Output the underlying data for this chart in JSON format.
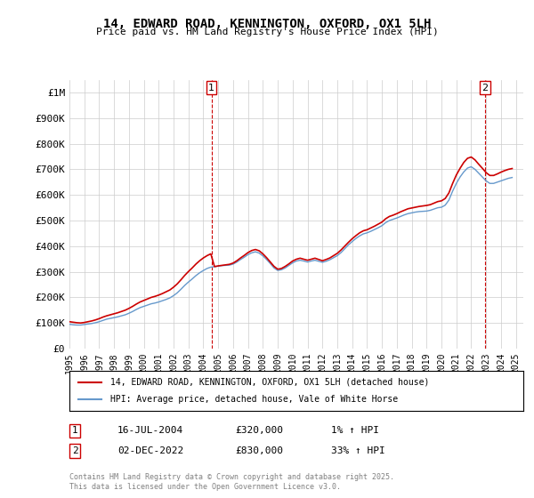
{
  "title": "14, EDWARD ROAD, KENNINGTON, OXFORD, OX1 5LH",
  "subtitle": "Price paid vs. HM Land Registry's House Price Index (HPI)",
  "ylabel_ticks": [
    "£0",
    "£100K",
    "£200K",
    "£300K",
    "£400K",
    "£500K",
    "£600K",
    "£700K",
    "£800K",
    "£900K",
    "£1M"
  ],
  "ytick_values": [
    0,
    100000,
    200000,
    300000,
    400000,
    500000,
    600000,
    700000,
    800000,
    900000,
    1000000
  ],
  "ylim": [
    0,
    1050000
  ],
  "xlim_start": 1995.0,
  "xlim_end": 2025.5,
  "xtick_years": [
    1995,
    1996,
    1997,
    1998,
    1999,
    2000,
    2001,
    2002,
    2003,
    2004,
    2005,
    2006,
    2007,
    2008,
    2009,
    2010,
    2011,
    2012,
    2013,
    2014,
    2015,
    2016,
    2017,
    2018,
    2019,
    2020,
    2021,
    2022,
    2023,
    2024,
    2025
  ],
  "hpi_color": "#6699cc",
  "price_color": "#cc0000",
  "dashed_line_color": "#cc0000",
  "marker1_x": 2004.54,
  "marker1_y": 320000,
  "marker2_x": 2022.92,
  "marker2_y": 830000,
  "legend_label1": "14, EDWARD ROAD, KENNINGTON, OXFORD, OX1 5LH (detached house)",
  "legend_label2": "HPI: Average price, detached house, Vale of White Horse",
  "annotation1_num": "1",
  "annotation2_num": "2",
  "sale1_date": "16-JUL-2004",
  "sale1_price": "£320,000",
  "sale1_hpi": "1% ↑ HPI",
  "sale2_date": "02-DEC-2022",
  "sale2_price": "£830,000",
  "sale2_hpi": "33% ↑ HPI",
  "footer": "Contains HM Land Registry data © Crown copyright and database right 2025.\nThis data is licensed under the Open Government Licence v3.0.",
  "background_color": "#ffffff",
  "grid_color": "#cccccc",
  "hpi_data_x": [
    1995.0,
    1995.25,
    1995.5,
    1995.75,
    1996.0,
    1996.25,
    1996.5,
    1996.75,
    1997.0,
    1997.25,
    1997.5,
    1997.75,
    1998.0,
    1998.25,
    1998.5,
    1998.75,
    1999.0,
    1999.25,
    1999.5,
    1999.75,
    2000.0,
    2000.25,
    2000.5,
    2000.75,
    2001.0,
    2001.25,
    2001.5,
    2001.75,
    2002.0,
    2002.25,
    2002.5,
    2002.75,
    2003.0,
    2003.25,
    2003.5,
    2003.75,
    2004.0,
    2004.25,
    2004.5,
    2004.75,
    2005.0,
    2005.25,
    2005.5,
    2005.75,
    2006.0,
    2006.25,
    2006.5,
    2006.75,
    2007.0,
    2007.25,
    2007.5,
    2007.75,
    2008.0,
    2008.25,
    2008.5,
    2008.75,
    2009.0,
    2009.25,
    2009.5,
    2009.75,
    2010.0,
    2010.25,
    2010.5,
    2010.75,
    2011.0,
    2011.25,
    2011.5,
    2011.75,
    2012.0,
    2012.25,
    2012.5,
    2012.75,
    2013.0,
    2013.25,
    2013.5,
    2013.75,
    2014.0,
    2014.25,
    2014.5,
    2014.75,
    2015.0,
    2015.25,
    2015.5,
    2015.75,
    2016.0,
    2016.25,
    2016.5,
    2016.75,
    2017.0,
    2017.25,
    2017.5,
    2017.75,
    2018.0,
    2018.25,
    2018.5,
    2018.75,
    2019.0,
    2019.25,
    2019.5,
    2019.75,
    2020.0,
    2020.25,
    2020.5,
    2020.75,
    2021.0,
    2021.25,
    2021.5,
    2021.75,
    2022.0,
    2022.25,
    2022.5,
    2022.75,
    2023.0,
    2023.25,
    2023.5,
    2023.75,
    2024.0,
    2024.25,
    2024.5,
    2024.75
  ],
  "hpi_data_y": [
    95000,
    93000,
    92000,
    92000,
    94000,
    96000,
    98000,
    101000,
    105000,
    110000,
    115000,
    118000,
    121000,
    124000,
    128000,
    132000,
    138000,
    145000,
    153000,
    160000,
    165000,
    170000,
    175000,
    178000,
    182000,
    187000,
    192000,
    198000,
    207000,
    218000,
    232000,
    247000,
    260000,
    272000,
    285000,
    296000,
    305000,
    313000,
    318000,
    320000,
    322000,
    324000,
    325000,
    326000,
    330000,
    338000,
    348000,
    357000,
    367000,
    374000,
    378000,
    373000,
    362000,
    348000,
    332000,
    315000,
    305000,
    308000,
    315000,
    325000,
    335000,
    342000,
    345000,
    342000,
    338000,
    342000,
    345000,
    341000,
    337000,
    341000,
    347000,
    355000,
    363000,
    375000,
    390000,
    405000,
    418000,
    430000,
    440000,
    448000,
    452000,
    458000,
    465000,
    472000,
    480000,
    492000,
    500000,
    505000,
    510000,
    516000,
    522000,
    527000,
    530000,
    533000,
    535000,
    536000,
    537000,
    540000,
    545000,
    550000,
    552000,
    560000,
    580000,
    615000,
    645000,
    670000,
    690000,
    705000,
    710000,
    700000,
    685000,
    670000,
    655000,
    645000,
    645000,
    650000,
    655000,
    660000,
    665000,
    668000
  ],
  "price_data_x": [
    1995.0,
    1995.25,
    1995.5,
    1995.75,
    1996.0,
    1996.25,
    1996.5,
    1996.75,
    1997.0,
    1997.25,
    1997.5,
    1997.75,
    1998.0,
    1998.25,
    1998.5,
    1998.75,
    1999.0,
    1999.25,
    1999.5,
    1999.75,
    2000.0,
    2000.25,
    2000.5,
    2000.75,
    2001.0,
    2001.25,
    2001.5,
    2001.75,
    2002.0,
    2002.25,
    2002.5,
    2002.75,
    2003.0,
    2003.25,
    2003.5,
    2003.75,
    2004.0,
    2004.25,
    2004.5,
    2004.75,
    2005.0,
    2005.25,
    2005.5,
    2005.75,
    2006.0,
    2006.25,
    2006.5,
    2006.75,
    2007.0,
    2007.25,
    2007.5,
    2007.75,
    2008.0,
    2008.25,
    2008.5,
    2008.75,
    2009.0,
    2009.25,
    2009.5,
    2009.75,
    2010.0,
    2010.25,
    2010.5,
    2010.75,
    2011.0,
    2011.25,
    2011.5,
    2011.75,
    2012.0,
    2012.25,
    2012.5,
    2012.75,
    2013.0,
    2013.25,
    2013.5,
    2013.75,
    2014.0,
    2014.25,
    2014.5,
    2014.75,
    2015.0,
    2015.25,
    2015.5,
    2015.75,
    2016.0,
    2016.25,
    2016.5,
    2016.75,
    2017.0,
    2017.25,
    2017.5,
    2017.75,
    2018.0,
    2018.25,
    2018.5,
    2018.75,
    2019.0,
    2019.25,
    2019.5,
    2019.75,
    2020.0,
    2020.25,
    2020.5,
    2020.75,
    2021.0,
    2021.25,
    2021.5,
    2021.75,
    2022.0,
    2022.25,
    2022.5,
    2022.75,
    2023.0,
    2023.25,
    2023.5,
    2023.75,
    2024.0,
    2024.25,
    2024.5,
    2024.75
  ],
  "price_data_y": [
    105000,
    103000,
    101000,
    100000,
    102000,
    105000,
    108000,
    112000,
    117000,
    123000,
    128000,
    132000,
    136000,
    140000,
    145000,
    150000,
    157000,
    165000,
    174000,
    182000,
    188000,
    194000,
    200000,
    204000,
    209000,
    215000,
    222000,
    229000,
    240000,
    253000,
    269000,
    286000,
    301000,
    315000,
    330000,
    343000,
    354000,
    363000,
    370000,
    320000,
    323000,
    325000,
    327000,
    329000,
    334000,
    343000,
    354000,
    364000,
    375000,
    383000,
    387000,
    382000,
    370000,
    355000,
    338000,
    321000,
    310000,
    313000,
    321000,
    331000,
    342000,
    349000,
    353000,
    349000,
    345000,
    349000,
    353000,
    348000,
    343000,
    348000,
    354000,
    363000,
    372000,
    385000,
    400000,
    415000,
    429000,
    441000,
    452000,
    460000,
    464000,
    471000,
    478000,
    486000,
    494000,
    507000,
    516000,
    521000,
    527000,
    534000,
    540000,
    546000,
    549000,
    552000,
    555000,
    557000,
    559000,
    562000,
    568000,
    574000,
    577000,
    586000,
    608000,
    645000,
    678000,
    704000,
    727000,
    743000,
    748000,
    737000,
    720000,
    704000,
    687000,
    676000,
    676000,
    682000,
    689000,
    695000,
    700000,
    703000
  ]
}
